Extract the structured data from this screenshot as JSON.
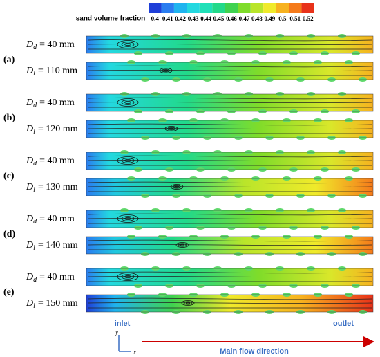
{
  "colorbar": {
    "title": "sand volume fraction",
    "ticks": [
      0.4,
      0.41,
      0.42,
      0.43,
      0.44,
      0.45,
      0.46,
      0.47,
      0.48,
      0.49,
      0.5,
      0.51,
      0.52
    ],
    "colors": [
      "#1f3fd8",
      "#2a7df0",
      "#1fb4ef",
      "#23d8e0",
      "#20e0b8",
      "#22d98a",
      "#3fd24f",
      "#7fdc2a",
      "#b9e52a",
      "#f0ea2a",
      "#f7b21f",
      "#f57a1a",
      "#e8321a"
    ]
  },
  "panels": [
    {
      "label": "(a)",
      "rows": [
        {
          "symbol": "D",
          "subscript": "d",
          "value": "= 40 mm"
        },
        {
          "symbol": "D",
          "subscript": "l",
          "value": "= 110 mm"
        }
      ]
    },
    {
      "label": "(b)",
      "rows": [
        {
          "symbol": "D",
          "subscript": "d",
          "value": "= 40 mm"
        },
        {
          "symbol": "D",
          "subscript": "l",
          "value": "= 120 mm"
        }
      ]
    },
    {
      "label": "(c)",
      "rows": [
        {
          "symbol": "D",
          "subscript": "d",
          "value": "= 40 mm"
        },
        {
          "symbol": "D",
          "subscript": "l",
          "value": "= 130 mm"
        }
      ]
    },
    {
      "label": "(d)",
      "rows": [
        {
          "symbol": "D",
          "subscript": "d",
          "value": "= 40 mm"
        },
        {
          "symbol": "D",
          "subscript": "l",
          "value": "= 140 mm"
        }
      ]
    },
    {
      "label": "(e)",
      "rows": [
        {
          "symbol": "D",
          "subscript": "d",
          "value": "= 40 mm"
        },
        {
          "symbol": "D",
          "subscript": "l",
          "value": "= 150 mm"
        }
      ]
    }
  ],
  "annotations": {
    "inlet": "inlet",
    "outlet": "outlet",
    "flow": "Main flow direction",
    "axis_y": "y",
    "axis_x": "x"
  }
}
